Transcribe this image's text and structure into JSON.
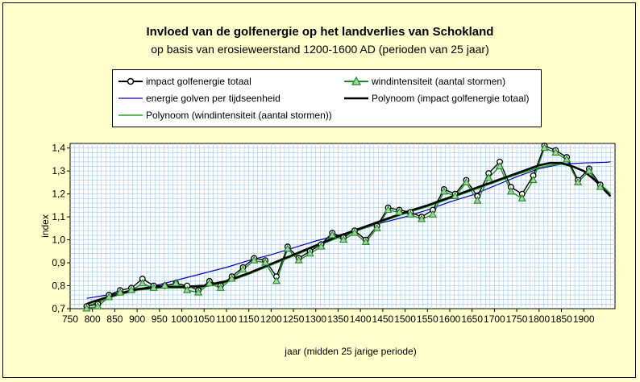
{
  "chart_data": {
    "type": "line",
    "title": "Invloed van de golfenergie op het landverlies van Schokland",
    "subtitle": "op basis van erosieweerstand 1200-1600 AD (perioden van 25 jaar)",
    "xlabel": "jaar (midden 25 jarige periode)",
    "ylabel": "index",
    "xlim": [
      750,
      1970
    ],
    "ylim": [
      0.7,
      1.42
    ],
    "x_ticks": [
      "750",
      "800",
      "850",
      "900",
      "950",
      "1000",
      "1050",
      "1100",
      "1150",
      "1200",
      "1250",
      "1300",
      "1350",
      "1400",
      "1450",
      "1500",
      "1550",
      "1600",
      "1650",
      "1700",
      "1750",
      "1800",
      "1850",
      "1900"
    ],
    "y_ticks": [
      "0,7",
      "0,8",
      "0,9",
      "1,0",
      "1,1",
      "1,2",
      "1,3",
      "1,4"
    ],
    "grid": true,
    "legend_position": "top",
    "colors": {
      "impact": "#000000",
      "wind": "#228b22",
      "energie": "#0000cc",
      "poly_impact": "#000000",
      "poly_wind": "#22a022",
      "grid": "#9ecbf0",
      "marker_fill": "#9fd39f"
    },
    "series": [
      {
        "name": "impact golfenergie totaal",
        "marker": "circle",
        "x": [
          787,
          812,
          837,
          862,
          887,
          912,
          937,
          962,
          987,
          1012,
          1037,
          1062,
          1087,
          1112,
          1137,
          1162,
          1187,
          1212,
          1237,
          1262,
          1287,
          1312,
          1337,
          1362,
          1387,
          1412,
          1437,
          1462,
          1487,
          1512,
          1537,
          1562,
          1587,
          1612,
          1637,
          1662,
          1687,
          1712,
          1737,
          1762,
          1787,
          1812,
          1837,
          1862,
          1887,
          1912,
          1937
        ],
        "values": [
          0.71,
          0.72,
          0.76,
          0.78,
          0.79,
          0.83,
          0.8,
          0.8,
          0.81,
          0.8,
          0.78,
          0.82,
          0.8,
          0.84,
          0.88,
          0.92,
          0.91,
          0.84,
          0.97,
          0.92,
          0.95,
          0.98,
          1.03,
          1.01,
          1.04,
          1.0,
          1.06,
          1.14,
          1.13,
          1.12,
          1.1,
          1.13,
          1.22,
          1.2,
          1.26,
          1.19,
          1.29,
          1.34,
          1.23,
          1.2,
          1.28,
          1.41,
          1.39,
          1.36,
          1.26,
          1.31,
          1.24
        ]
      },
      {
        "name": "windintensiteit (aantal stormen)",
        "marker": "triangle",
        "x": [
          787,
          812,
          837,
          862,
          887,
          912,
          937,
          962,
          987,
          1012,
          1037,
          1062,
          1087,
          1112,
          1137,
          1162,
          1187,
          1212,
          1237,
          1262,
          1287,
          1312,
          1337,
          1362,
          1387,
          1412,
          1437,
          1462,
          1487,
          1512,
          1537,
          1562,
          1587,
          1612,
          1637,
          1662,
          1687,
          1712,
          1737,
          1762,
          1787,
          1812,
          1837,
          1862,
          1887,
          1912,
          1937
        ],
        "values": [
          0.7,
          0.71,
          0.75,
          0.77,
          0.78,
          0.81,
          0.79,
          0.8,
          0.81,
          0.78,
          0.77,
          0.81,
          0.79,
          0.83,
          0.87,
          0.91,
          0.9,
          0.82,
          0.96,
          0.91,
          0.94,
          0.97,
          1.02,
          1.0,
          1.03,
          0.99,
          1.05,
          1.13,
          1.12,
          1.11,
          1.09,
          1.11,
          1.21,
          1.19,
          1.25,
          1.17,
          1.27,
          1.32,
          1.21,
          1.18,
          1.26,
          1.4,
          1.38,
          1.35,
          1.25,
          1.3,
          1.23
        ]
      },
      {
        "name": "energie golven per tijdseenheid",
        "x": [
          787,
          850,
          900,
          950,
          1000,
          1050,
          1100,
          1150,
          1200,
          1250,
          1300,
          1350,
          1400,
          1450,
          1500,
          1550,
          1600,
          1650,
          1700,
          1750,
          1800,
          1850,
          1900,
          1950,
          1960
        ],
        "values": [
          0.745,
          0.765,
          0.785,
          0.805,
          0.83,
          0.855,
          0.88,
          0.91,
          0.935,
          0.965,
          0.995,
          1.02,
          1.045,
          1.075,
          1.1,
          1.13,
          1.165,
          1.195,
          1.235,
          1.275,
          1.31,
          1.33,
          1.335,
          1.338,
          1.34
        ]
      },
      {
        "name": "Polynoom (impact golfenergie totaal)",
        "x": [
          787,
          800,
          850,
          900,
          950,
          1000,
          1050,
          1100,
          1150,
          1200,
          1250,
          1300,
          1350,
          1400,
          1450,
          1500,
          1550,
          1600,
          1650,
          1700,
          1750,
          1800,
          1825,
          1850,
          1875,
          1900,
          1925,
          1950,
          1960
        ],
        "values": [
          0.72,
          0.73,
          0.76,
          0.785,
          0.795,
          0.795,
          0.8,
          0.82,
          0.855,
          0.895,
          0.935,
          0.975,
          1.015,
          1.05,
          1.085,
          1.12,
          1.15,
          1.185,
          1.22,
          1.255,
          1.29,
          1.325,
          1.335,
          1.335,
          1.32,
          1.3,
          1.26,
          1.21,
          1.19
        ]
      },
      {
        "name": "Polynoom (windintensiteit (aantal stormen))",
        "x": [
          787,
          800,
          850,
          900,
          950,
          1000,
          1050,
          1100,
          1150,
          1200,
          1250,
          1300,
          1350,
          1400,
          1450,
          1500,
          1550,
          1600,
          1650,
          1700,
          1750,
          1800,
          1825,
          1850,
          1875,
          1900,
          1925,
          1950,
          1960
        ],
        "values": [
          0.71,
          0.72,
          0.755,
          0.78,
          0.79,
          0.79,
          0.795,
          0.815,
          0.85,
          0.89,
          0.93,
          0.97,
          1.01,
          1.045,
          1.08,
          1.115,
          1.145,
          1.18,
          1.215,
          1.25,
          1.285,
          1.315,
          1.325,
          1.33,
          1.32,
          1.3,
          1.26,
          1.22,
          1.2
        ]
      }
    ]
  }
}
